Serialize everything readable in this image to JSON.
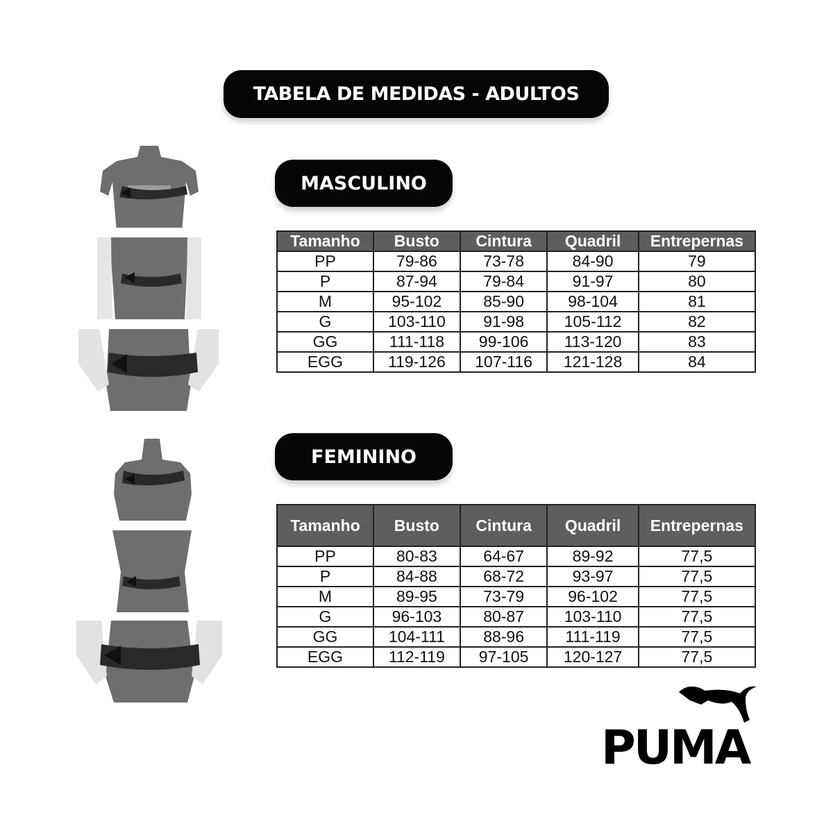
{
  "title": "TABELA DE MEDIDAS - ADULTOS",
  "columns": [
    "Tamanho",
    "Busto",
    "Cintura",
    "Quadril",
    "Entrepernas"
  ],
  "masculino": {
    "label": "MASCULINO",
    "rows": [
      [
        "PP",
        "79-86",
        "73-78",
        "84-90",
        "79"
      ],
      [
        "P",
        "87-94",
        "79-84",
        "91-97",
        "80"
      ],
      [
        "M",
        "95-102",
        "85-90",
        "98-104",
        "81"
      ],
      [
        "G",
        "103-110",
        "91-98",
        "105-112",
        "82"
      ],
      [
        "GG",
        "111-118",
        "99-106",
        "113-120",
        "83"
      ],
      [
        "EGG",
        "119-126",
        "107-116",
        "121-128",
        "84"
      ]
    ]
  },
  "feminino": {
    "label": "FEMININO",
    "rows": [
      [
        "PP",
        "80-83",
        "64-67",
        "89-92",
        "77,5"
      ],
      [
        "P",
        "84-88",
        "68-72",
        "93-97",
        "77,5"
      ],
      [
        "M",
        "89-95",
        "73-79",
        "96-102",
        "77,5"
      ],
      [
        "G",
        "96-103",
        "80-87",
        "103-110",
        "77,5"
      ],
      [
        "GG",
        "104-111",
        "88-96",
        "111-119",
        "77,5"
      ],
      [
        "EGG",
        "112-119",
        "97-105",
        "120-127",
        "77,5"
      ]
    ]
  },
  "logo": {
    "text": "PUMA",
    "color": "#000000"
  },
  "colors": {
    "header_bg": "#5e5e5e",
    "pill_bg": "#050505"
  }
}
